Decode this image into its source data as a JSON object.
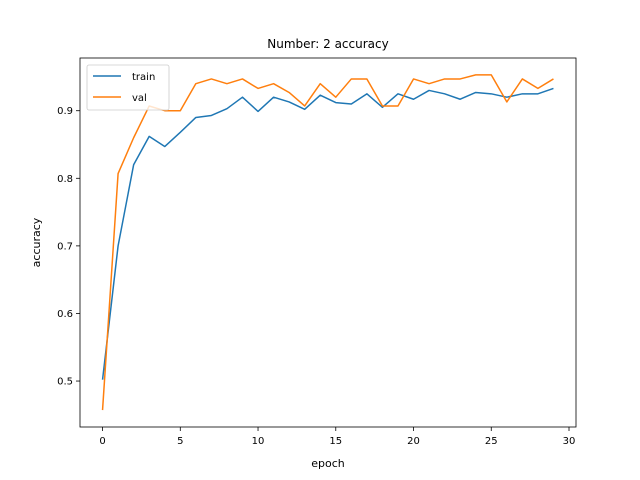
{
  "chart_data": {
    "type": "line",
    "title": "Number: 2 accuracy",
    "xlabel": "epoch",
    "ylabel": "accuracy",
    "xlim": [
      -1.45,
      30.45
    ],
    "ylim": [
      0.432,
      0.978
    ],
    "xticks": [
      0,
      5,
      10,
      15,
      20,
      25,
      30
    ],
    "yticks": [
      0.5,
      0.6,
      0.7,
      0.8,
      0.9
    ],
    "ytick_labels": [
      "0.5",
      "0.6",
      "0.7",
      "0.8",
      "0.9"
    ],
    "grid": false,
    "legend_position": "top-left",
    "x": [
      0,
      1,
      2,
      3,
      4,
      5,
      6,
      7,
      8,
      9,
      10,
      11,
      12,
      13,
      14,
      15,
      16,
      17,
      18,
      19,
      20,
      21,
      22,
      23,
      24,
      25,
      26,
      27,
      28,
      29
    ],
    "series": [
      {
        "name": "train",
        "color": "#1f77b4",
        "values": [
          0.502,
          0.7,
          0.82,
          0.862,
          0.847,
          0.868,
          0.89,
          0.893,
          0.903,
          0.92,
          0.899,
          0.92,
          0.913,
          0.902,
          0.923,
          0.912,
          0.91,
          0.925,
          0.905,
          0.925,
          0.917,
          0.93,
          0.925,
          0.917,
          0.927,
          0.925,
          0.92,
          0.925,
          0.925,
          0.933
        ]
      },
      {
        "name": "val",
        "color": "#ff7f0e",
        "values": [
          0.457,
          0.807,
          0.86,
          0.907,
          0.9,
          0.9,
          0.94,
          0.947,
          0.94,
          0.947,
          0.933,
          0.94,
          0.927,
          0.907,
          0.94,
          0.92,
          0.947,
          0.947,
          0.907,
          0.907,
          0.947,
          0.94,
          0.947,
          0.947,
          0.953,
          0.953,
          0.913,
          0.947,
          0.933,
          0.947
        ]
      }
    ]
  }
}
